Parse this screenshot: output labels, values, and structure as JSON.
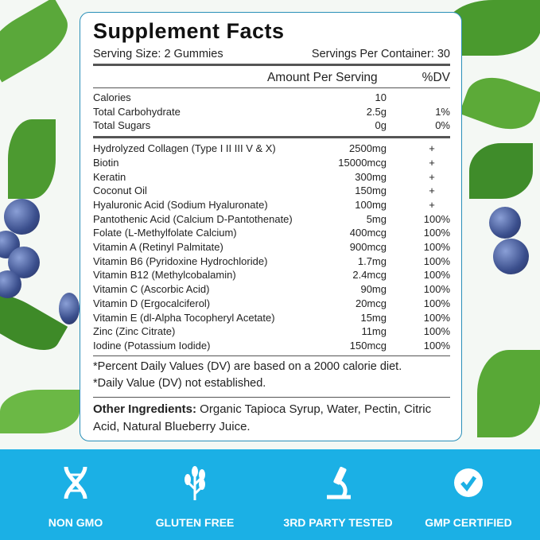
{
  "title": "Supplement Facts",
  "serving_size": "Serving Size: 2 Gummies",
  "servings_per_container": "Servings Per Container: 30",
  "header": {
    "amount": "Amount Per Serving",
    "dv": "%DV"
  },
  "basic": [
    {
      "name": "Calories",
      "amount": "10",
      "dv": ""
    },
    {
      "name": "Total Carbohydrate",
      "amount": "2.5g",
      "dv": "1%"
    },
    {
      "name": "Total Sugars",
      "amount": "0g",
      "dv": "0%"
    }
  ],
  "nutrients": [
    {
      "name": "Hydrolyzed Collagen (Type I II III V & X)",
      "amount": "2500mg",
      "dv": "+"
    },
    {
      "name": "Biotin",
      "amount": "15000mcg",
      "dv": "+"
    },
    {
      "name": "Keratin",
      "amount": "300mg",
      "dv": "+"
    },
    {
      "name": "Coconut Oil",
      "amount": "150mg",
      "dv": "+"
    },
    {
      "name": "Hyaluronic Acid (Sodium Hyaluronate)",
      "amount": "100mg",
      "dv": "+"
    },
    {
      "name": "Pantothenic Acid (Calcium D-Pantothenate)",
      "amount": "5mg",
      "dv": "100%"
    },
    {
      "name": "Folate (L-Methylfolate Calcium)",
      "amount": "400mcg",
      "dv": "100%"
    },
    {
      "name": "Vitamin A (Retinyl Palmitate)",
      "amount": "900mcg",
      "dv": "100%"
    },
    {
      "name": "Vitamin B6 (Pyridoxine Hydrochloride)",
      "amount": "1.7mg",
      "dv": "100%"
    },
    {
      "name": "Vitamin B12 (Methylcobalamin)",
      "amount": "2.4mcg",
      "dv": "100%"
    },
    {
      "name": "Vitamin C (Ascorbic Acid)",
      "amount": "90mg",
      "dv": "100%"
    },
    {
      "name": "Vitamin D (Ergocalciferol)",
      "amount": "20mcg",
      "dv": "100%"
    },
    {
      "name": "Vitamin E (dl-Alpha Tocopheryl Acetate)",
      "amount": "15mg",
      "dv": "100%"
    },
    {
      "name": "Zinc (Zinc Citrate)",
      "amount": "11mg",
      "dv": "100%"
    },
    {
      "name": "Iodine (Potassium Iodide)",
      "amount": "150mcg",
      "dv": "100%"
    }
  ],
  "footnotes": [
    "*Percent Daily Values (DV) are based on a 2000 calorie diet.",
    "*Daily Value (DV) not established."
  ],
  "other_ingredients": {
    "label": "Other Ingredients:",
    "text": " Organic Tapioca Syrup, Water, Pectin, Citric Acid, Natural Blueberry Juice."
  },
  "badges": [
    {
      "icon": "dna-icon",
      "label": "NON GMO"
    },
    {
      "icon": "wheat-icon",
      "label": "GLUTEN FREE"
    },
    {
      "icon": "microscope-icon",
      "label": "3RD PARTY TESTED"
    },
    {
      "icon": "check-circle-icon",
      "label": "GMP CERTIFIED"
    }
  ],
  "colors": {
    "band": "#1bb0e5",
    "border": "#2a8fb8"
  }
}
